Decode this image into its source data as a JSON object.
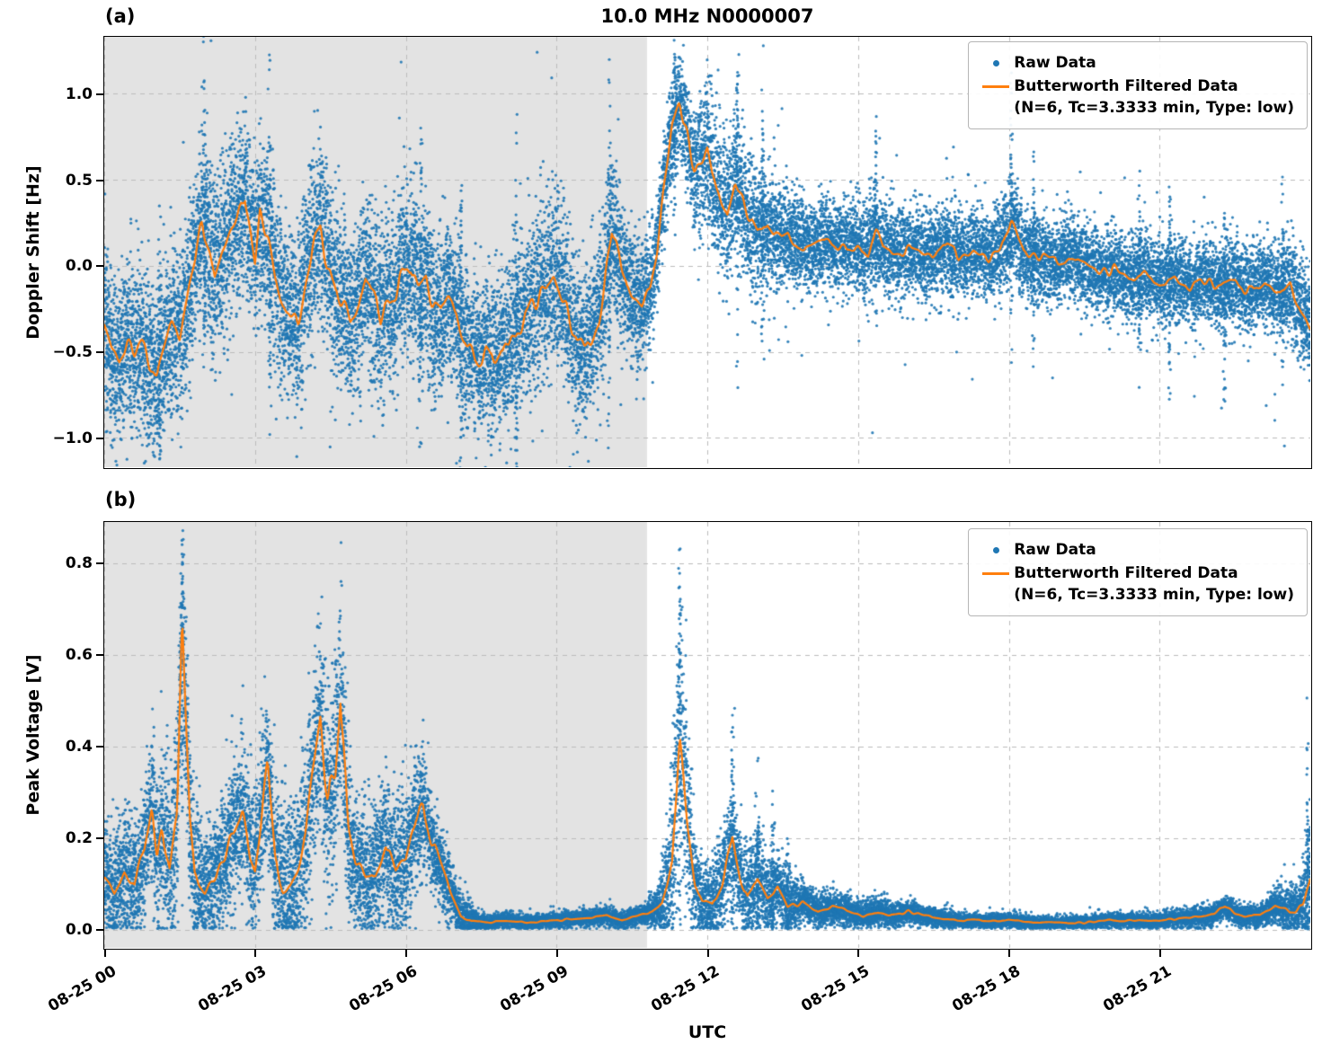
{
  "title": "10.0 MHz N0000007",
  "xlabel": "UTC",
  "panel_a_label": "(a)",
  "panel_b_label": "(b)",
  "legend": {
    "raw_label": "Raw Data",
    "filtered_label": "Butterworth Filtered Data",
    "filtered_sublabel": "(N=6, Tc=3.3333 min, Type: low)"
  },
  "colors": {
    "raw": "#1f77b4",
    "filtered": "#ff7f0e",
    "shaded": "#e3e3e3",
    "grid": "#bbbbbb",
    "axis": "#000000"
  },
  "x_range_hours": [
    0,
    24
  ],
  "shaded_hours": [
    0,
    10.8
  ],
  "xticks": [
    {
      "hour": 0,
      "label": "08-25 00"
    },
    {
      "hour": 3,
      "label": "08-25 03"
    },
    {
      "hour": 6,
      "label": "08-25 06"
    },
    {
      "hour": 9,
      "label": "08-25 09"
    },
    {
      "hour": 12,
      "label": "08-25 12"
    },
    {
      "hour": 15,
      "label": "08-25 15"
    },
    {
      "hour": 18,
      "label": "08-25 18"
    },
    {
      "hour": 21,
      "label": "08-25 21"
    }
  ],
  "chart_data": [
    {
      "type": "scatter+line",
      "panel": "a",
      "ylabel": "Doppler Shift [Hz]",
      "ylim": [
        -1.17,
        1.33
      ],
      "yticks": [
        -1.0,
        -0.5,
        0.0,
        0.5,
        1.0
      ],
      "ytick_labels": [
        "−1.0",
        "−0.5",
        "0.0",
        "0.5",
        "1.0"
      ],
      "series": {
        "filtered_name": "Butterworth Filtered Data",
        "raw_name": "Raw Data",
        "raw_model": "symmetric",
        "filtered": [
          [
            0.0,
            -0.35
          ],
          [
            0.15,
            -0.5
          ],
          [
            0.3,
            -0.55
          ],
          [
            0.45,
            -0.45
          ],
          [
            0.6,
            -0.5
          ],
          [
            0.75,
            -0.45
          ],
          [
            0.9,
            -0.55
          ],
          [
            1.05,
            -0.65
          ],
          [
            1.2,
            -0.5
          ],
          [
            1.35,
            -0.35
          ],
          [
            1.5,
            -0.4
          ],
          [
            1.65,
            -0.2
          ],
          [
            1.8,
            0.0
          ],
          [
            1.95,
            0.25
          ],
          [
            2.1,
            0.1
          ],
          [
            2.2,
            -0.05
          ],
          [
            2.35,
            0.1
          ],
          [
            2.5,
            0.2
          ],
          [
            2.65,
            0.3
          ],
          [
            2.8,
            0.42
          ],
          [
            2.9,
            0.2
          ],
          [
            3.0,
            0.05
          ],
          [
            3.1,
            0.3
          ],
          [
            3.25,
            0.2
          ],
          [
            3.4,
            -0.05
          ],
          [
            3.55,
            -0.2
          ],
          [
            3.7,
            -0.3
          ],
          [
            3.85,
            -0.35
          ],
          [
            4.0,
            -0.1
          ],
          [
            4.15,
            0.1
          ],
          [
            4.3,
            0.2
          ],
          [
            4.45,
            0.0
          ],
          [
            4.6,
            -0.15
          ],
          [
            4.75,
            -0.2
          ],
          [
            4.9,
            -0.3
          ],
          [
            5.05,
            -0.2
          ],
          [
            5.2,
            -0.05
          ],
          [
            5.35,
            -0.15
          ],
          [
            5.5,
            -0.3
          ],
          [
            5.65,
            -0.2
          ],
          [
            5.8,
            -0.15
          ],
          [
            5.95,
            -0.05
          ],
          [
            6.1,
            0.0
          ],
          [
            6.25,
            -0.15
          ],
          [
            6.4,
            -0.1
          ],
          [
            6.55,
            -0.25
          ],
          [
            6.7,
            -0.3
          ],
          [
            6.85,
            -0.2
          ],
          [
            7.0,
            -0.25
          ],
          [
            7.15,
            -0.4
          ],
          [
            7.3,
            -0.5
          ],
          [
            7.45,
            -0.55
          ],
          [
            7.6,
            -0.5
          ],
          [
            7.75,
            -0.55
          ],
          [
            7.9,
            -0.45
          ],
          [
            8.05,
            -0.5
          ],
          [
            8.2,
            -0.4
          ],
          [
            8.35,
            -0.3
          ],
          [
            8.5,
            -0.25
          ],
          [
            8.65,
            -0.2
          ],
          [
            8.8,
            -0.15
          ],
          [
            8.95,
            -0.05
          ],
          [
            9.1,
            -0.15
          ],
          [
            9.25,
            -0.3
          ],
          [
            9.4,
            -0.45
          ],
          [
            9.55,
            -0.5
          ],
          [
            9.7,
            -0.4
          ],
          [
            9.85,
            -0.3
          ],
          [
            10.0,
            0.0
          ],
          [
            10.1,
            0.2
          ],
          [
            10.25,
            0.05
          ],
          [
            10.4,
            -0.15
          ],
          [
            10.55,
            -0.2
          ],
          [
            10.7,
            -0.25
          ],
          [
            10.85,
            -0.15
          ],
          [
            11.0,
            0.1
          ],
          [
            11.15,
            0.5
          ],
          [
            11.3,
            0.8
          ],
          [
            11.45,
            0.95
          ],
          [
            11.6,
            0.75
          ],
          [
            11.75,
            0.55
          ],
          [
            11.9,
            0.6
          ],
          [
            12.0,
            0.65
          ],
          [
            12.1,
            0.5
          ],
          [
            12.25,
            0.4
          ],
          [
            12.4,
            0.3
          ],
          [
            12.55,
            0.5
          ],
          [
            12.7,
            0.4
          ],
          [
            12.85,
            0.25
          ],
          [
            13.0,
            0.18
          ],
          [
            13.2,
            0.25
          ],
          [
            13.4,
            0.15
          ],
          [
            13.6,
            0.2
          ],
          [
            13.8,
            0.12
          ],
          [
            14.0,
            0.1
          ],
          [
            14.3,
            0.15
          ],
          [
            14.6,
            0.1
          ],
          [
            14.9,
            0.12
          ],
          [
            15.2,
            0.08
          ],
          [
            15.35,
            0.2
          ],
          [
            15.5,
            0.1
          ],
          [
            15.8,
            0.08
          ],
          [
            16.1,
            0.1
          ],
          [
            16.4,
            0.05
          ],
          [
            16.7,
            0.12
          ],
          [
            17.0,
            0.06
          ],
          [
            17.3,
            0.1
          ],
          [
            17.6,
            0.05
          ],
          [
            17.9,
            0.12
          ],
          [
            18.05,
            0.25
          ],
          [
            18.3,
            0.08
          ],
          [
            18.6,
            0.05
          ],
          [
            18.9,
            0.02
          ],
          [
            19.2,
            0.05
          ],
          [
            19.5,
            0.0
          ],
          [
            19.8,
            -0.05
          ],
          [
            20.1,
            -0.02
          ],
          [
            20.4,
            -0.08
          ],
          [
            20.7,
            -0.05
          ],
          [
            21.0,
            -0.1
          ],
          [
            21.3,
            -0.08
          ],
          [
            21.6,
            -0.12
          ],
          [
            21.9,
            -0.08
          ],
          [
            22.2,
            -0.12
          ],
          [
            22.5,
            -0.1
          ],
          [
            22.8,
            -0.15
          ],
          [
            23.1,
            -0.1
          ],
          [
            23.4,
            -0.18
          ],
          [
            23.6,
            -0.1
          ],
          [
            23.8,
            -0.25
          ],
          [
            24.0,
            -0.35
          ]
        ],
        "raw_spread": [
          [
            0,
            0.22
          ],
          [
            2,
            0.25
          ],
          [
            4,
            0.25
          ],
          [
            6,
            0.25
          ],
          [
            7.5,
            0.22
          ],
          [
            9,
            0.25
          ],
          [
            10.5,
            0.2
          ],
          [
            11,
            0.15
          ],
          [
            11.5,
            0.15
          ],
          [
            12,
            0.22
          ],
          [
            13,
            0.18
          ],
          [
            14,
            0.13
          ],
          [
            16,
            0.13
          ],
          [
            18,
            0.13
          ],
          [
            20,
            0.12
          ],
          [
            22,
            0.12
          ],
          [
            24,
            0.14
          ]
        ],
        "raw_burst_hours": [
          1.1,
          2.0,
          3.3,
          6.3,
          7.1,
          8.2,
          10.05,
          11.35,
          12.6,
          13.1,
          15.35,
          18.05,
          18.5,
          20.6,
          21.2,
          22.3,
          23.45
        ]
      }
    },
    {
      "type": "scatter+line",
      "panel": "b",
      "ylabel": "Peak Voltage [V]",
      "ylim": [
        -0.04,
        0.89
      ],
      "yticks": [
        0.0,
        0.2,
        0.4,
        0.6,
        0.8
      ],
      "ytick_labels": [
        "0.0",
        "0.2",
        "0.4",
        "0.6",
        "0.8"
      ],
      "series": {
        "filtered_name": "Butterworth Filtered Data",
        "raw_name": "Raw Data",
        "raw_model": "positive",
        "filtered": [
          [
            0.0,
            0.12
          ],
          [
            0.2,
            0.09
          ],
          [
            0.4,
            0.13
          ],
          [
            0.6,
            0.1
          ],
          [
            0.8,
            0.17
          ],
          [
            0.95,
            0.27
          ],
          [
            1.05,
            0.15
          ],
          [
            1.15,
            0.22
          ],
          [
            1.3,
            0.13
          ],
          [
            1.45,
            0.25
          ],
          [
            1.55,
            0.7
          ],
          [
            1.7,
            0.25
          ],
          [
            1.8,
            0.12
          ],
          [
            2.0,
            0.09
          ],
          [
            2.2,
            0.12
          ],
          [
            2.4,
            0.16
          ],
          [
            2.6,
            0.22
          ],
          [
            2.75,
            0.26
          ],
          [
            2.9,
            0.16
          ],
          [
            3.0,
            0.13
          ],
          [
            3.1,
            0.22
          ],
          [
            3.25,
            0.36
          ],
          [
            3.4,
            0.15
          ],
          [
            3.55,
            0.09
          ],
          [
            3.7,
            0.1
          ],
          [
            3.85,
            0.13
          ],
          [
            4.0,
            0.2
          ],
          [
            4.15,
            0.33
          ],
          [
            4.3,
            0.45
          ],
          [
            4.45,
            0.28
          ],
          [
            4.6,
            0.35
          ],
          [
            4.7,
            0.52
          ],
          [
            4.85,
            0.22
          ],
          [
            5.0,
            0.15
          ],
          [
            5.2,
            0.11
          ],
          [
            5.4,
            0.13
          ],
          [
            5.6,
            0.19
          ],
          [
            5.8,
            0.12
          ],
          [
            6.0,
            0.15
          ],
          [
            6.2,
            0.24
          ],
          [
            6.35,
            0.27
          ],
          [
            6.5,
            0.2
          ],
          [
            6.7,
            0.14
          ],
          [
            6.9,
            0.08
          ],
          [
            7.1,
            0.03
          ],
          [
            7.3,
            0.02
          ],
          [
            7.6,
            0.015
          ],
          [
            8.0,
            0.02
          ],
          [
            8.5,
            0.015
          ],
          [
            9.0,
            0.02
          ],
          [
            9.5,
            0.025
          ],
          [
            10.0,
            0.03
          ],
          [
            10.3,
            0.02
          ],
          [
            10.6,
            0.03
          ],
          [
            10.9,
            0.04
          ],
          [
            11.1,
            0.06
          ],
          [
            11.3,
            0.15
          ],
          [
            11.45,
            0.44
          ],
          [
            11.6,
            0.25
          ],
          [
            11.75,
            0.1
          ],
          [
            11.9,
            0.06
          ],
          [
            12.1,
            0.05
          ],
          [
            12.3,
            0.1
          ],
          [
            12.5,
            0.2
          ],
          [
            12.65,
            0.12
          ],
          [
            12.8,
            0.07
          ],
          [
            13.0,
            0.12
          ],
          [
            13.2,
            0.07
          ],
          [
            13.4,
            0.09
          ],
          [
            13.6,
            0.05
          ],
          [
            13.9,
            0.06
          ],
          [
            14.2,
            0.04
          ],
          [
            14.5,
            0.05
          ],
          [
            14.8,
            0.04
          ],
          [
            15.1,
            0.03
          ],
          [
            15.4,
            0.04
          ],
          [
            15.7,
            0.03
          ],
          [
            16.0,
            0.04
          ],
          [
            16.3,
            0.03
          ],
          [
            16.6,
            0.025
          ],
          [
            17.0,
            0.02
          ],
          [
            17.5,
            0.02
          ],
          [
            18.0,
            0.02
          ],
          [
            18.5,
            0.015
          ],
          [
            19.0,
            0.015
          ],
          [
            19.5,
            0.015
          ],
          [
            20.0,
            0.02
          ],
          [
            20.5,
            0.02
          ],
          [
            21.0,
            0.02
          ],
          [
            21.5,
            0.025
          ],
          [
            22.0,
            0.03
          ],
          [
            22.3,
            0.05
          ],
          [
            22.6,
            0.03
          ],
          [
            23.0,
            0.03
          ],
          [
            23.3,
            0.05
          ],
          [
            23.6,
            0.04
          ],
          [
            23.85,
            0.05
          ],
          [
            24.0,
            0.12
          ]
        ],
        "raw_spread": [
          [
            0,
            0.06
          ],
          [
            1,
            0.08
          ],
          [
            1.55,
            0.12
          ],
          [
            2,
            0.06
          ],
          [
            3,
            0.08
          ],
          [
            4,
            0.1
          ],
          [
            4.7,
            0.12
          ],
          [
            5,
            0.07
          ],
          [
            6,
            0.08
          ],
          [
            7,
            0.03
          ],
          [
            7.5,
            0.008
          ],
          [
            9,
            0.008
          ],
          [
            10.7,
            0.01
          ],
          [
            11,
            0.02
          ],
          [
            11.45,
            0.15
          ],
          [
            11.8,
            0.04
          ],
          [
            12.5,
            0.06
          ],
          [
            13,
            0.05
          ],
          [
            14,
            0.02
          ],
          [
            15,
            0.015
          ],
          [
            16,
            0.012
          ],
          [
            17,
            0.008
          ],
          [
            18,
            0.008
          ],
          [
            19,
            0.006
          ],
          [
            20,
            0.008
          ],
          [
            21,
            0.008
          ],
          [
            22,
            0.012
          ],
          [
            23,
            0.012
          ],
          [
            23.8,
            0.03
          ],
          [
            24,
            0.08
          ]
        ],
        "raw_burst_hours": [
          1.55,
          11.45,
          12.5,
          13.0,
          13.3,
          13.6,
          23.95
        ]
      }
    }
  ]
}
